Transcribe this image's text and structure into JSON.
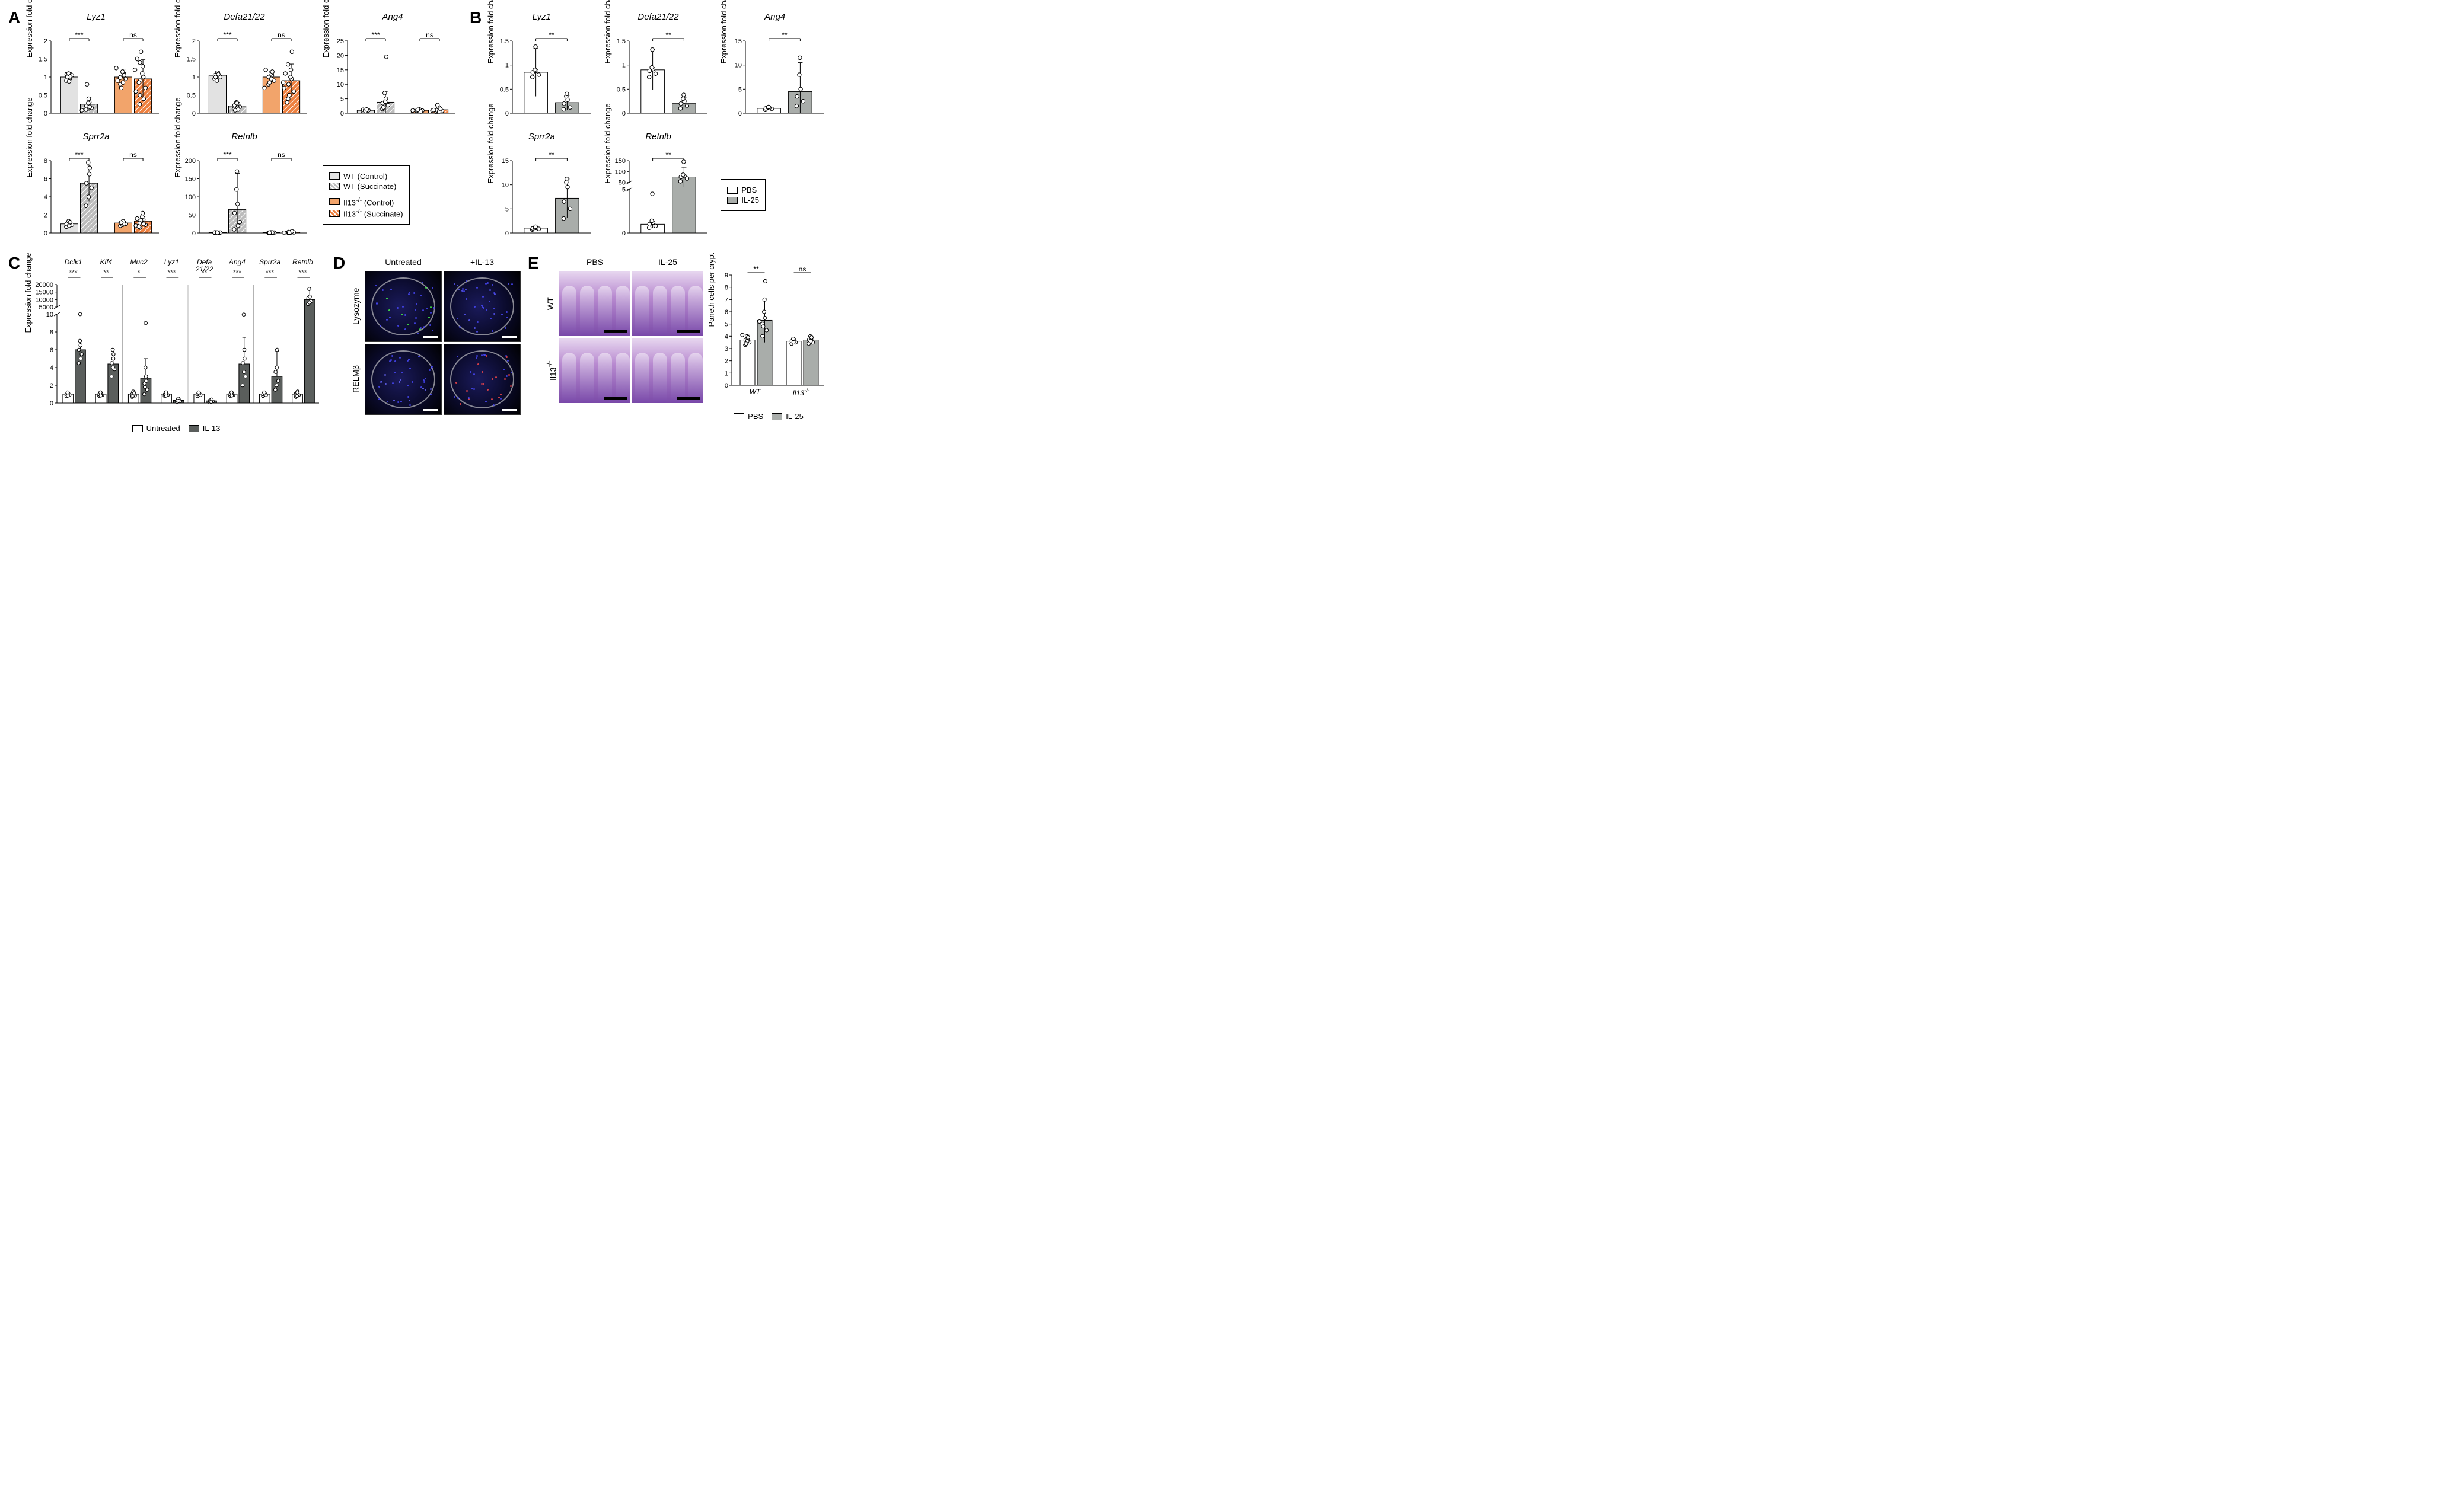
{
  "colors": {
    "wt_ctrl": "#e2e2e2",
    "wt_succ": "#bcbcbc",
    "il13_ctrl": "#f2a46b",
    "il13_succ": "#ee803f",
    "pbs": "#ffffff",
    "il25": "#a9adaa",
    "untreated": "#ffffff",
    "il13": "#5a5e5c",
    "stroke": "#000000",
    "point_fill": "#ffffff",
    "grid": "#000000"
  },
  "fonts": {
    "title_pt": 15,
    "axis_pt": 13,
    "letter_pt": 28
  },
  "panelA": {
    "letter": "A",
    "ylabel": "Expression fold change",
    "legend": [
      {
        "key": "wt_ctrl",
        "label": "WT (Control)",
        "hatch": false
      },
      {
        "key": "wt_succ",
        "label": "WT (Succinate)",
        "hatch": true
      },
      {
        "key": "il13_ctrl",
        "label": "Il13<sup>-/-</sup> (Control)",
        "hatch": false
      },
      {
        "key": "il13_succ",
        "label": "Il13<sup>-/-</sup> (Succinate)",
        "hatch": true
      }
    ],
    "charts": [
      {
        "title": "Lyz1",
        "ymax": 2.0,
        "ticks": [
          0,
          0.5,
          1.0,
          1.5,
          2.0
        ],
        "bars": [
          1.0,
          0.25,
          1.0,
          0.95
        ],
        "err": [
          0.12,
          0.18,
          0.22,
          0.53
        ],
        "sig": [
          "***",
          "ns"
        ],
        "pts": [
          [
            0.9,
            1.05,
            1.08,
            0.95,
            1.1,
            0.88,
            1.02,
            1.0
          ],
          [
            0.1,
            0.15,
            0.2,
            0.3,
            0.28,
            0.4,
            0.18,
            0.8,
            0.08
          ],
          [
            0.8,
            0.95,
            1.0,
            1.1,
            1.15,
            0.85,
            1.05,
            0.7,
            1.25,
            0.9,
            0.98
          ],
          [
            0.5,
            0.7,
            0.9,
            1.0,
            1.1,
            1.3,
            0.4,
            1.7,
            0.6,
            1.5,
            0.25,
            0.85,
            1.2,
            1.4
          ]
        ]
      },
      {
        "title": "Defa21/22",
        "ymax": 2.0,
        "ticks": [
          0,
          0.5,
          1.0,
          1.5,
          2.0
        ],
        "bars": [
          1.05,
          0.2,
          1.0,
          0.9
        ],
        "err": [
          0.1,
          0.1,
          0.15,
          0.46
        ],
        "sig": [
          "***",
          "ns"
        ],
        "pts": [
          [
            0.95,
            1.0,
            1.05,
            1.1,
            0.9,
            1.12,
            1.08,
            1.0
          ],
          [
            0.12,
            0.18,
            0.22,
            0.15,
            0.3,
            0.28,
            0.1,
            0.08
          ],
          [
            0.8,
            0.9,
            1.0,
            1.05,
            1.1,
            0.95,
            1.15,
            0.85,
            0.7,
            1.2
          ],
          [
            0.4,
            0.6,
            0.8,
            0.95,
            1.0,
            1.2,
            1.7,
            0.5,
            0.7,
            1.1,
            1.35,
            0.3,
            0.85
          ]
        ]
      },
      {
        "title": "Ang4",
        "ymax": 25,
        "ticks": [
          0,
          5,
          10,
          15,
          20,
          25
        ],
        "bars": [
          1.0,
          3.8,
          1.0,
          1.2
        ],
        "err": [
          0.4,
          3.8,
          0.3,
          0.6
        ],
        "sig": [
          "***",
          "ns"
        ],
        "pts": [
          [
            0.8,
            1.0,
            1.2,
            0.9,
            1.1,
            0.7,
            1.3
          ],
          [
            1.5,
            2.8,
            3.5,
            5.0,
            7.0,
            4.0,
            19.5,
            2.0
          ],
          [
            0.7,
            0.9,
            1.0,
            1.1,
            0.8,
            1.3,
            0.6,
            1.2,
            0.95
          ],
          [
            0.5,
            0.8,
            1.0,
            1.3,
            2.0,
            0.6,
            1.5,
            2.8,
            0.9,
            1.1
          ]
        ]
      },
      {
        "title": "Sprr2a",
        "ymax": 8,
        "ticks": [
          0,
          2,
          4,
          6,
          8
        ],
        "bars": [
          1.0,
          5.5,
          1.1,
          1.3
        ],
        "err": [
          0.3,
          2.0,
          0.2,
          0.5
        ],
        "sig": [
          "***",
          "ns"
        ],
        "pts": [
          [
            0.7,
            0.9,
            1.0,
            1.1,
            1.3,
            0.8,
            1.2
          ],
          [
            3.0,
            5.0,
            5.5,
            6.5,
            7.8,
            4.0,
            7.2
          ],
          [
            0.8,
            1.0,
            1.1,
            1.2,
            0.9,
            1.3,
            1.0,
            1.15
          ],
          [
            0.6,
            0.9,
            1.2,
            1.5,
            1.8,
            2.2,
            1.0,
            1.4,
            0.8,
            1.6,
            1.1,
            0.7
          ]
        ]
      },
      {
        "title": "Retnlb",
        "ymax": 200,
        "ticks": [
          0,
          50,
          100,
          150,
          200
        ],
        "bars": [
          1.0,
          65,
          1.0,
          2.0
        ],
        "err": [
          0.5,
          100,
          0.5,
          1.0
        ],
        "sig": [
          "***",
          "ns"
        ],
        "pts": [
          [
            0.5,
            1.0,
            1.5,
            0.8,
            1.2,
            0.6
          ],
          [
            10,
            30,
            55,
            80,
            120,
            170,
            20
          ],
          [
            0.5,
            0.8,
            1.0,
            1.2,
            1.5,
            0.7,
            1.3,
            0.9
          ],
          [
            0.8,
            1.5,
            2.5,
            3.5,
            1.0,
            2.0,
            4.5,
            1.2,
            0.5
          ]
        ]
      }
    ]
  },
  "panelB": {
    "letter": "B",
    "ylabel": "Expression fold change",
    "legend": [
      {
        "key": "pbs",
        "label": "PBS"
      },
      {
        "key": "il25",
        "label": "IL-25"
      }
    ],
    "charts": [
      {
        "title": "Lyz1",
        "ymax": 1.5,
        "ticks": [
          0,
          0.5,
          1.0,
          1.5
        ],
        "bars": [
          0.85,
          0.22
        ],
        "err": [
          0.5,
          0.15
        ],
        "sig": "**",
        "pts": [
          [
            0.75,
            0.8,
            0.85,
            0.88,
            0.9,
            1.38
          ],
          [
            0.08,
            0.12,
            0.2,
            0.28,
            0.35,
            0.4
          ]
        ]
      },
      {
        "title": "Defa21/22",
        "ymax": 1.5,
        "ticks": [
          0,
          0.5,
          1.0,
          1.5
        ],
        "bars": [
          0.9,
          0.2
        ],
        "err": [
          0.42,
          0.12
        ],
        "sig": "**",
        "pts": [
          [
            0.75,
            0.82,
            0.88,
            0.92,
            0.95,
            1.32
          ],
          [
            0.1,
            0.15,
            0.2,
            0.25,
            0.3,
            0.38
          ]
        ]
      },
      {
        "title": "Ang4",
        "ymax": 15,
        "ticks": [
          0,
          5,
          10,
          15
        ],
        "bars": [
          1.0,
          4.5
        ],
        "err": [
          0.3,
          6.0
        ],
        "sig": "**",
        "pts": [
          [
            0.7,
            0.9,
            1.0,
            1.1,
            1.2,
            1.3
          ],
          [
            1.5,
            2.5,
            3.5,
            5.0,
            8.0,
            11.5
          ]
        ]
      },
      {
        "title": "Sprr2a",
        "ymax": 15,
        "ticks": [
          0,
          5,
          10,
          15
        ],
        "bars": [
          1.0,
          7.2
        ],
        "err": [
          0.3,
          4.0
        ],
        "sig": "**",
        "pts": [
          [
            0.7,
            0.85,
            0.95,
            1.05,
            1.15,
            1.3
          ],
          [
            3.0,
            5.0,
            6.5,
            9.5,
            10.5,
            11.2
          ]
        ]
      },
      {
        "title": "Retnlb",
        "break": true,
        "lower_max": 5,
        "upper_min": 50,
        "upper_max": 150,
        "ticks_lower": [
          0,
          5
        ],
        "ticks_upper": [
          50,
          100,
          150
        ],
        "bars": [
          1.0,
          75
        ],
        "err": [
          0.4,
          45
        ],
        "sig": "**",
        "pts": [
          [
            0.6,
            0.8,
            1.0,
            1.2,
            1.4,
            4.5
          ],
          [
            55,
            68,
            75,
            80,
            85,
            145
          ]
        ]
      }
    ]
  },
  "panelC": {
    "letter": "C",
    "ylabel": "Expression fold change",
    "legend": [
      {
        "key": "untreated",
        "label": "Untreated"
      },
      {
        "key": "il13",
        "label": "IL-13"
      }
    ],
    "xlabels": [
      "Dclk1",
      "Klf4",
      "Muc2",
      "Lyz1",
      "Defa\n21/22",
      "Ang4",
      "Sprr2a",
      "Retnlb"
    ],
    "sig": [
      "***",
      "**",
      "*",
      "***",
      "**",
      "***",
      "***",
      "***"
    ],
    "break": true,
    "lower_max": 10,
    "upper_min": 5000,
    "upper_max": 20000,
    "ticks_lower": [
      0,
      2,
      4,
      6,
      8,
      10
    ],
    "ticks_upper": [
      5000,
      10000,
      15000,
      20000
    ],
    "pairs": [
      {
        "u": 1.0,
        "t": 6.0,
        "eu": 0.2,
        "et": 1.0,
        "pu": [
          0.8,
          0.9,
          1.0,
          1.1,
          1.2,
          0.85
        ],
        "pt": [
          4.5,
          5.5,
          6.0,
          6.5,
          7.0,
          10.0,
          5.0
        ]
      },
      {
        "u": 1.0,
        "t": 4.4,
        "eu": 0.2,
        "et": 1.6,
        "pu": [
          0.8,
          0.9,
          1.0,
          1.1,
          1.2,
          0.85
        ],
        "pt": [
          3.0,
          3.8,
          4.5,
          5.0,
          6.0,
          4.0,
          5.5
        ]
      },
      {
        "u": 1.0,
        "t": 2.8,
        "eu": 0.3,
        "et": 2.2,
        "pu": [
          0.7,
          0.85,
          1.0,
          1.15,
          1.3,
          0.9,
          1.1,
          0.8
        ],
        "pt": [
          1.0,
          1.5,
          2.2,
          3.0,
          4.0,
          9.0,
          2.5,
          1.8
        ]
      },
      {
        "u": 1.0,
        "t": 0.3,
        "eu": 0.2,
        "et": 0.15,
        "pu": [
          0.8,
          0.9,
          1.0,
          1.1,
          1.2,
          0.85
        ],
        "pt": [
          0.15,
          0.2,
          0.3,
          0.4,
          0.5,
          0.25
        ]
      },
      {
        "u": 1.0,
        "t": 0.25,
        "eu": 0.2,
        "et": 0.15,
        "pu": [
          0.8,
          0.9,
          1.0,
          1.1,
          1.2
        ],
        "pt": [
          0.1,
          0.2,
          0.3,
          0.4,
          0.15
        ]
      },
      {
        "u": 1.0,
        "t": 4.4,
        "eu": 0.2,
        "et": 3.0,
        "pu": [
          0.8,
          0.9,
          1.0,
          1.1,
          1.2,
          0.85
        ],
        "pt": [
          2.0,
          3.0,
          4.5,
          6.0,
          12.0,
          3.5,
          5.0
        ]
      },
      {
        "u": 1.0,
        "t": 3.0,
        "eu": 0.2,
        "et": 2.8,
        "pu": [
          0.8,
          0.9,
          1.0,
          1.1,
          1.2
        ],
        "pt": [
          1.5,
          2.5,
          3.5,
          6.0,
          2.0,
          4.0
        ]
      },
      {
        "u": 1.0,
        "t": 10000,
        "eu": 0.3,
        "et": 7000,
        "pu": [
          0.7,
          0.9,
          1.1,
          1.3,
          0.8,
          1.2
        ],
        "pt": [
          7000,
          9000,
          11000,
          12000,
          17000,
          8000
        ],
        "upper": true
      }
    ]
  },
  "panelD": {
    "letter": "D",
    "cols": [
      "Untreated",
      "+IL-13"
    ],
    "rows": [
      "Lysozyme",
      "RELMβ"
    ]
  },
  "panelE": {
    "letter": "E",
    "cols": [
      "PBS",
      "IL-25"
    ],
    "rows": [
      "WT",
      "Il13<sup>-/-</sup>"
    ],
    "chart": {
      "ylabel": "Paneth cells per crypt",
      "ymax": 9,
      "ticks": [
        0,
        1,
        2,
        3,
        4,
        5,
        6,
        7,
        8,
        9
      ],
      "groups": [
        "WT",
        "Il13<sup>-/-</sup>"
      ],
      "bars": [
        [
          3.7,
          5.3
        ],
        [
          3.6,
          3.7
        ]
      ],
      "err": [
        [
          0.4,
          1.8
        ],
        [
          0.2,
          0.3
        ]
      ],
      "sig": [
        "**",
        "ns"
      ],
      "pts": [
        [
          [
            3.3,
            3.5,
            3.7,
            3.8,
            4.0,
            3.6,
            3.9,
            3.4,
            4.1
          ],
          [
            4.0,
            4.5,
            5.0,
            5.5,
            6.0,
            7.0,
            8.5,
            4.8,
            5.2
          ]
        ],
        [
          [
            3.4,
            3.5,
            3.6,
            3.7,
            3.8,
            3.5
          ],
          [
            3.4,
            3.5,
            3.7,
            3.8,
            4.0,
            3.6,
            3.9
          ]
        ]
      ],
      "legend": [
        {
          "key": "pbs",
          "label": "PBS"
        },
        {
          "key": "il25",
          "label": "IL-25"
        }
      ]
    }
  }
}
